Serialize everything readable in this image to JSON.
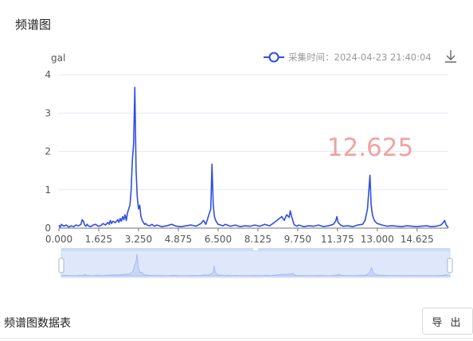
{
  "page": {
    "title": "频谱图",
    "table_title": "频谱图数据表",
    "export_label": "导 出"
  },
  "colors": {
    "series": "#2f4fe0",
    "watermark": "#f2a2a2",
    "grid": "#e6e9f2",
    "zoom_fill": "#dfe8fb",
    "zoom_line": "#a8bdf0"
  },
  "icons": {
    "download": "download-icon"
  },
  "chart_data": {
    "type": "line",
    "ylabel": "gal",
    "ylim": [
      0,
      4
    ],
    "yticks": [
      "0",
      "1",
      "2",
      "3",
      "4"
    ],
    "xlim": [
      0,
      15.9
    ],
    "xticks": [
      "0.000",
      "1.625",
      "3.250",
      "4.875",
      "6.500",
      "8.125",
      "9.750",
      "11.375",
      "13.000",
      "14.625"
    ],
    "grid": true,
    "legend_position": "top-right",
    "series": [
      {
        "name": "采集时间：2024-04-23 21:40:04",
        "x": [
          0,
          0.05,
          0.1,
          0.2,
          0.3,
          0.4,
          0.5,
          0.6,
          0.7,
          0.8,
          0.9,
          0.95,
          1.0,
          1.05,
          1.1,
          1.15,
          1.2,
          1.3,
          1.4,
          1.5,
          1.6,
          1.7,
          1.8,
          1.9,
          2.0,
          2.05,
          2.1,
          2.15,
          2.2,
          2.3,
          2.4,
          2.45,
          2.5,
          2.55,
          2.6,
          2.65,
          2.7,
          2.75,
          2.8,
          2.85,
          2.9,
          2.95,
          3.0,
          3.05,
          3.1,
          3.15,
          3.2,
          3.25,
          3.3,
          3.35,
          3.4,
          3.45,
          3.5,
          3.55,
          3.6,
          3.7,
          3.8,
          3.9,
          4.0,
          4.2,
          4.4,
          4.6,
          4.8,
          5.0,
          5.2,
          5.4,
          5.6,
          5.8,
          5.9,
          6.0,
          6.1,
          6.2,
          6.25,
          6.3,
          6.35,
          6.4,
          6.45,
          6.5,
          6.6,
          6.7,
          6.8,
          7.0,
          7.2,
          7.4,
          7.6,
          7.8,
          8.0,
          8.2,
          8.4,
          8.6,
          8.8,
          9.0,
          9.1,
          9.2,
          9.3,
          9.4,
          9.45,
          9.5,
          9.55,
          9.6,
          9.7,
          9.8,
          10.0,
          10.2,
          10.4,
          10.6,
          10.8,
          11.0,
          11.2,
          11.3,
          11.35,
          11.4,
          11.5,
          11.6,
          11.8,
          12.0,
          12.2,
          12.4,
          12.5,
          12.6,
          12.7,
          12.75,
          12.8,
          12.85,
          12.9,
          13.0,
          13.2,
          13.4,
          13.6,
          13.8,
          14.0,
          14.2,
          14.4,
          14.6,
          14.8,
          15.0,
          15.2,
          15.4,
          15.6,
          15.7,
          15.75,
          15.8,
          15.85,
          15.9
        ],
        "values": [
          0.08,
          0.02,
          0.1,
          0.05,
          0.08,
          0.03,
          0.06,
          0.04,
          0.08,
          0.06,
          0.1,
          0.22,
          0.18,
          0.08,
          0.05,
          0.1,
          0.06,
          0.04,
          0.08,
          0.1,
          0.05,
          0.06,
          0.12,
          0.08,
          0.15,
          0.1,
          0.2,
          0.12,
          0.18,
          0.14,
          0.22,
          0.15,
          0.25,
          0.18,
          0.3,
          0.22,
          0.35,
          0.2,
          0.4,
          0.5,
          0.6,
          1.0,
          1.8,
          2.2,
          3.67,
          1.5,
          0.8,
          0.5,
          0.6,
          0.3,
          0.2,
          0.15,
          0.1,
          0.12,
          0.08,
          0.06,
          0.1,
          0.05,
          0.08,
          0.04,
          0.06,
          0.1,
          0.05,
          0.04,
          0.06,
          0.08,
          0.05,
          0.12,
          0.2,
          0.1,
          0.3,
          0.5,
          1.67,
          0.6,
          0.3,
          0.2,
          0.15,
          0.1,
          0.08,
          0.06,
          0.1,
          0.05,
          0.08,
          0.04,
          0.06,
          0.05,
          0.08,
          0.05,
          0.1,
          0.06,
          0.15,
          0.25,
          0.3,
          0.2,
          0.35,
          0.28,
          0.45,
          0.3,
          0.2,
          0.1,
          0.05,
          0.08,
          0.04,
          0.06,
          0.05,
          0.08,
          0.04,
          0.06,
          0.1,
          0.18,
          0.3,
          0.15,
          0.08,
          0.05,
          0.06,
          0.04,
          0.08,
          0.1,
          0.2,
          0.5,
          1.38,
          0.6,
          0.35,
          0.25,
          0.18,
          0.12,
          0.08,
          0.05,
          0.06,
          0.05,
          0.04,
          0.06,
          0.05,
          0.04,
          0.05,
          0.06,
          0.04,
          0.05,
          0.08,
          0.15,
          0.2,
          0.1,
          0.05,
          0.02
        ]
      }
    ],
    "watermark": "12.625"
  }
}
